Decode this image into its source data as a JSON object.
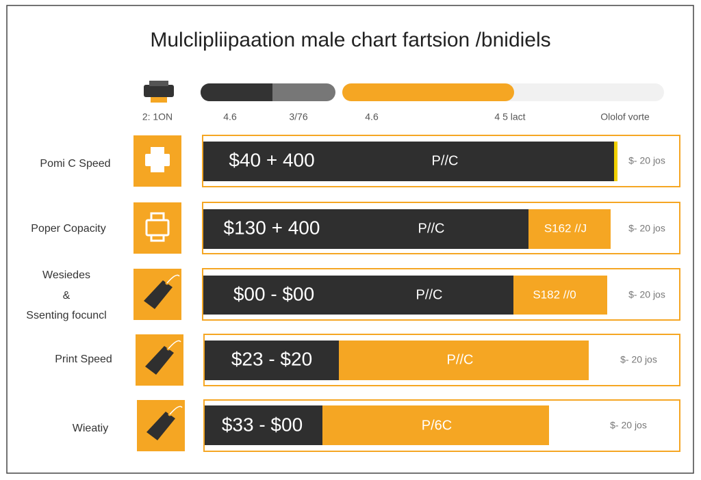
{
  "title": "Mulclipliipaation male chart fartsion /bnidiels",
  "header": {
    "icon_label": "2: 1ON",
    "scale_labels": [
      "4.6",
      "3/76",
      "4.6",
      "4 5 lact",
      "Ololof vorte"
    ]
  },
  "rows": [
    {
      "label": [
        "Pomi C Speed"
      ],
      "range": "$40 + 400",
      "unit": "P//C",
      "note": "$- 20 jos"
    },
    {
      "label": [
        "Poper Copacity"
      ],
      "range": "$130 + 400",
      "unit": "P//C",
      "badge": "S162 //J",
      "note": "$- 20 jos"
    },
    {
      "label": [
        "Wesiedes",
        "&",
        "Ssenting focuncl"
      ],
      "range": "$00 - $00",
      "unit": "P//C",
      "badge": "S182 //0",
      "note": "$- 20 jos"
    },
    {
      "label": [
        "Print Speed"
      ],
      "range": "$23 - $20",
      "unit": "P//C",
      "note": "$- 20 jos"
    },
    {
      "label": [
        "Wieatiy"
      ],
      "range": "$33 - $00",
      "unit": "P/6C",
      "note": "$- 20 jos"
    }
  ]
}
